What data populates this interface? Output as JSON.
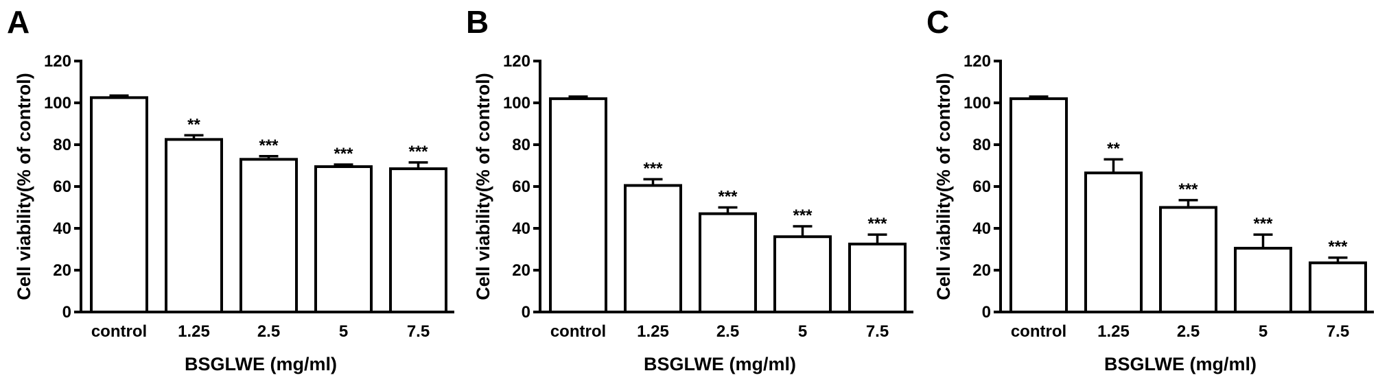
{
  "chart_data": [
    {
      "type": "bar",
      "panel": "A",
      "categories": [
        "control",
        "1.25",
        "2.5",
        "5",
        "7.5"
      ],
      "values": [
        102.5,
        82.5,
        73,
        69.5,
        68.5
      ],
      "errors": [
        1,
        2,
        1.5,
        1,
        3
      ],
      "significance": [
        "",
        "**",
        "***",
        "***",
        "***"
      ],
      "xlabel": "BSGLWE (mg/ml)",
      "ylabel": "Cell viability(% of control)",
      "ylim": [
        0,
        120
      ],
      "yticks": [
        0,
        20,
        40,
        60,
        80,
        100,
        120
      ],
      "grid": false
    },
    {
      "type": "bar",
      "panel": "B",
      "categories": [
        "control",
        "1.25",
        "2.5",
        "5",
        "7.5"
      ],
      "values": [
        102,
        60.5,
        47,
        36,
        32.5
      ],
      "errors": [
        1,
        3,
        3,
        5,
        4.5
      ],
      "significance": [
        "",
        "***",
        "***",
        "***",
        "***"
      ],
      "xlabel": "BSGLWE (mg/ml)",
      "ylabel": "Cell viability(% of control)",
      "ylim": [
        0,
        120
      ],
      "yticks": [
        0,
        20,
        40,
        60,
        80,
        100,
        120
      ],
      "grid": false
    },
    {
      "type": "bar",
      "panel": "C",
      "categories": [
        "control",
        "1.25",
        "2.5",
        "5",
        "7.5"
      ],
      "values": [
        102,
        66.5,
        50,
        30.5,
        23.5
      ],
      "errors": [
        1,
        6.5,
        3.5,
        6.5,
        2.5
      ],
      "significance": [
        "",
        "**",
        "***",
        "***",
        "***"
      ],
      "xlabel": "BSGLWE (mg/ml)",
      "ylabel": "Cell viability(% of control)",
      "ylim": [
        0,
        120
      ],
      "yticks": [
        0,
        20,
        40,
        60,
        80,
        100,
        120
      ],
      "grid": false
    }
  ]
}
